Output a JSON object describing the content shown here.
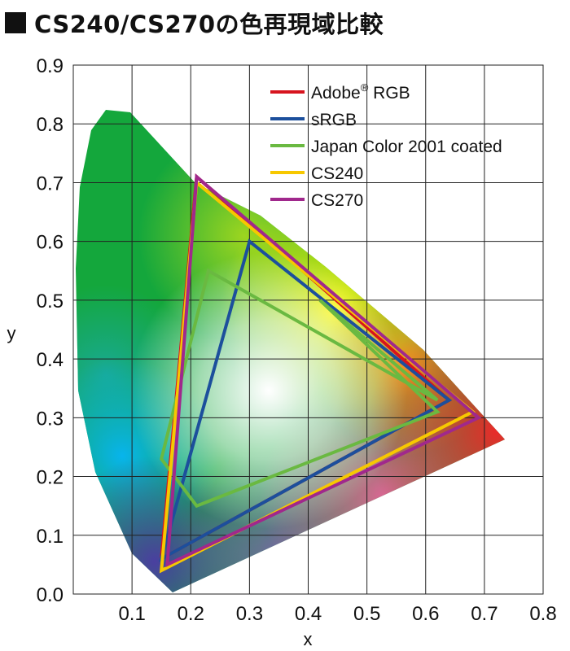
{
  "chart_data": {
    "type": "line",
    "title": "CS240/CS270の色再現域比較",
    "xlabel": "x",
    "ylabel": "y",
    "xlim": [
      0.0,
      0.8
    ],
    "ylim": [
      0.0,
      0.9
    ],
    "xticks": [
      "0.1",
      "0.2",
      "0.3",
      "0.4",
      "0.5",
      "0.6",
      "0.7",
      "0.8"
    ],
    "yticks": [
      "0.0",
      "0.1",
      "0.2",
      "0.3",
      "0.4",
      "0.5",
      "0.6",
      "0.7",
      "0.8",
      "0.9"
    ],
    "grid": true,
    "legend_position": "top-right",
    "series": [
      {
        "name": "Adobe® RGB",
        "legend_text": "Adobe",
        "legend_sup": "®",
        "legend_suffix": " RGB",
        "color": "#d7141e",
        "points": [
          [
            0.64,
            0.33
          ],
          [
            0.21,
            0.71
          ],
          [
            0.15,
            0.06
          ]
        ]
      },
      {
        "name": "sRGB",
        "legend_text": "sRGB",
        "color": "#1c4f9c",
        "points": [
          [
            0.64,
            0.33
          ],
          [
            0.3,
            0.6
          ],
          [
            0.15,
            0.06
          ]
        ]
      },
      {
        "name": "Japan Color 2001 coated",
        "legend_text": "Japan Color 2001 coated",
        "color": "#6ab941",
        "points": [
          [
            0.62,
            0.33
          ],
          [
            0.23,
            0.55
          ],
          [
            0.15,
            0.23
          ],
          [
            0.21,
            0.15
          ],
          [
            0.62,
            0.31
          ],
          [
            0.42,
            0.5
          ]
        ]
      },
      {
        "name": "CS240",
        "legend_text": "CS240",
        "color": "#f7c800",
        "points": [
          [
            0.68,
            0.31
          ],
          [
            0.21,
            0.7
          ],
          [
            0.15,
            0.04
          ]
        ]
      },
      {
        "name": "CS270",
        "legend_text": "CS270",
        "color": "#a0288c",
        "points": [
          [
            0.69,
            0.3
          ],
          [
            0.21,
            0.71
          ],
          [
            0.16,
            0.05
          ]
        ]
      }
    ]
  }
}
